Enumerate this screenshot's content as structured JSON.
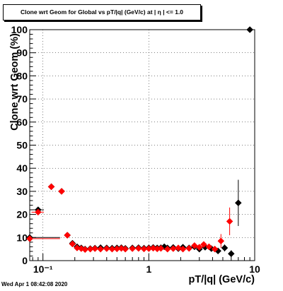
{
  "chart_data": {
    "type": "scatter",
    "title": "Clone wrt Geom for Global vs pT/|q| (GeV/c) at |  η | <= 1.0",
    "xlabel": "pT/|q| (GeV/c)",
    "ylabel": "Clone wrt Geom (%)",
    "xscale": "log",
    "xlim": [
      0.075,
      10
    ],
    "ylim": [
      0,
      100
    ],
    "grid": true,
    "x_ticks": [
      {
        "value": 0.1,
        "label": "10⁻¹"
      },
      {
        "value": 1,
        "label": "1"
      },
      {
        "value": 10,
        "label": "10"
      }
    ],
    "y_ticks": [
      0,
      10,
      20,
      30,
      40,
      50,
      60,
      70,
      80,
      90,
      100
    ],
    "series": [
      {
        "color": "#000000",
        "marker": "diamond",
        "points": [
          [
            0.075,
            10,
            0,
            0.07
          ],
          [
            0.09,
            22,
            1.2,
            0.012
          ],
          [
            0.12,
            32,
            0,
            0
          ],
          [
            0.15,
            30,
            0,
            0
          ],
          [
            0.17,
            11,
            0,
            0
          ],
          [
            0.19,
            7.5,
            0,
            0
          ],
          [
            0.21,
            6,
            0,
            0
          ],
          [
            0.23,
            5.5,
            0,
            0
          ],
          [
            0.25,
            5,
            0,
            0
          ],
          [
            0.28,
            5.2,
            0,
            0
          ],
          [
            0.31,
            5.4,
            0,
            0
          ],
          [
            0.35,
            5.6,
            0,
            0
          ],
          [
            0.4,
            5.5,
            0,
            0
          ],
          [
            0.45,
            5.4,
            0,
            0
          ],
          [
            0.5,
            5.5,
            0,
            0
          ],
          [
            0.55,
            5.6,
            0,
            0
          ],
          [
            0.6,
            5.3,
            0,
            0
          ],
          [
            0.7,
            5.5,
            0,
            0
          ],
          [
            0.8,
            5.6,
            0,
            0
          ],
          [
            0.9,
            5.4,
            0,
            0
          ],
          [
            1.0,
            5.5,
            0,
            0
          ],
          [
            1.1,
            5.7,
            0,
            0
          ],
          [
            1.2,
            5.5,
            0,
            0
          ],
          [
            1.3,
            5.6,
            0,
            0
          ],
          [
            1.4,
            6.0,
            0,
            0
          ],
          [
            1.5,
            5.5,
            0,
            0
          ],
          [
            1.7,
            5.7,
            0,
            0
          ],
          [
            1.9,
            5.2,
            0,
            0
          ],
          [
            2.1,
            5.8,
            0,
            0
          ],
          [
            2.4,
            5.5,
            0,
            0
          ],
          [
            2.7,
            6.0,
            0,
            0
          ],
          [
            3.0,
            5.0,
            0,
            0
          ],
          [
            3.4,
            5.8,
            0,
            0
          ],
          [
            3.9,
            5.2,
            0,
            0
          ],
          [
            4.5,
            4.2,
            0,
            0
          ],
          [
            5.2,
            5.5,
            1.5,
            0
          ],
          [
            6.0,
            3.0,
            1.5,
            0
          ],
          [
            7.0,
            25,
            10,
            0
          ],
          [
            9.0,
            100,
            0,
            0
          ]
        ]
      },
      {
        "color": "#ff0000",
        "marker": "diamond",
        "points": [
          [
            0.075,
            9.5,
            0,
            0.07
          ],
          [
            0.09,
            21,
            1.2,
            0.012
          ],
          [
            0.12,
            32,
            0,
            0
          ],
          [
            0.15,
            30,
            0,
            0
          ],
          [
            0.17,
            11,
            0,
            0
          ],
          [
            0.19,
            7.2,
            0,
            0
          ],
          [
            0.21,
            5.5,
            0,
            0
          ],
          [
            0.23,
            5.2,
            0,
            0
          ],
          [
            0.25,
            4.8,
            0,
            0
          ],
          [
            0.28,
            5.0,
            0,
            0
          ],
          [
            0.31,
            5.2,
            0,
            0
          ],
          [
            0.35,
            5.0,
            0,
            0
          ],
          [
            0.4,
            5.2,
            0,
            0
          ],
          [
            0.45,
            5.0,
            0,
            0
          ],
          [
            0.5,
            5.1,
            0,
            0
          ],
          [
            0.55,
            5.3,
            0,
            0
          ],
          [
            0.6,
            5.0,
            0,
            0
          ],
          [
            0.7,
            5.2,
            0,
            0
          ],
          [
            0.8,
            5.3,
            0,
            0
          ],
          [
            0.9,
            5.1,
            0,
            0
          ],
          [
            1.0,
            5.2,
            0,
            0
          ],
          [
            1.1,
            5.4,
            0,
            0
          ],
          [
            1.2,
            5.1,
            0,
            0
          ],
          [
            1.3,
            5.3,
            0,
            0
          ],
          [
            1.5,
            5.0,
            0,
            0
          ],
          [
            1.7,
            5.2,
            0,
            0
          ],
          [
            1.9,
            5.5,
            0,
            0
          ],
          [
            2.1,
            5.0,
            0,
            0
          ],
          [
            2.4,
            5.3,
            0,
            0
          ],
          [
            2.7,
            6.5,
            0,
            0
          ],
          [
            3.0,
            5.8,
            0,
            0
          ],
          [
            3.3,
            7.0,
            0,
            0
          ],
          [
            3.7,
            6.0,
            0,
            0
          ],
          [
            4.2,
            5.0,
            0,
            0
          ],
          [
            4.8,
            8.5,
            3,
            0
          ],
          [
            5.8,
            17,
            6,
            0
          ]
        ]
      }
    ]
  },
  "footer": {
    "timestamp": "Wed Apr  1 08:42:08 2020"
  }
}
